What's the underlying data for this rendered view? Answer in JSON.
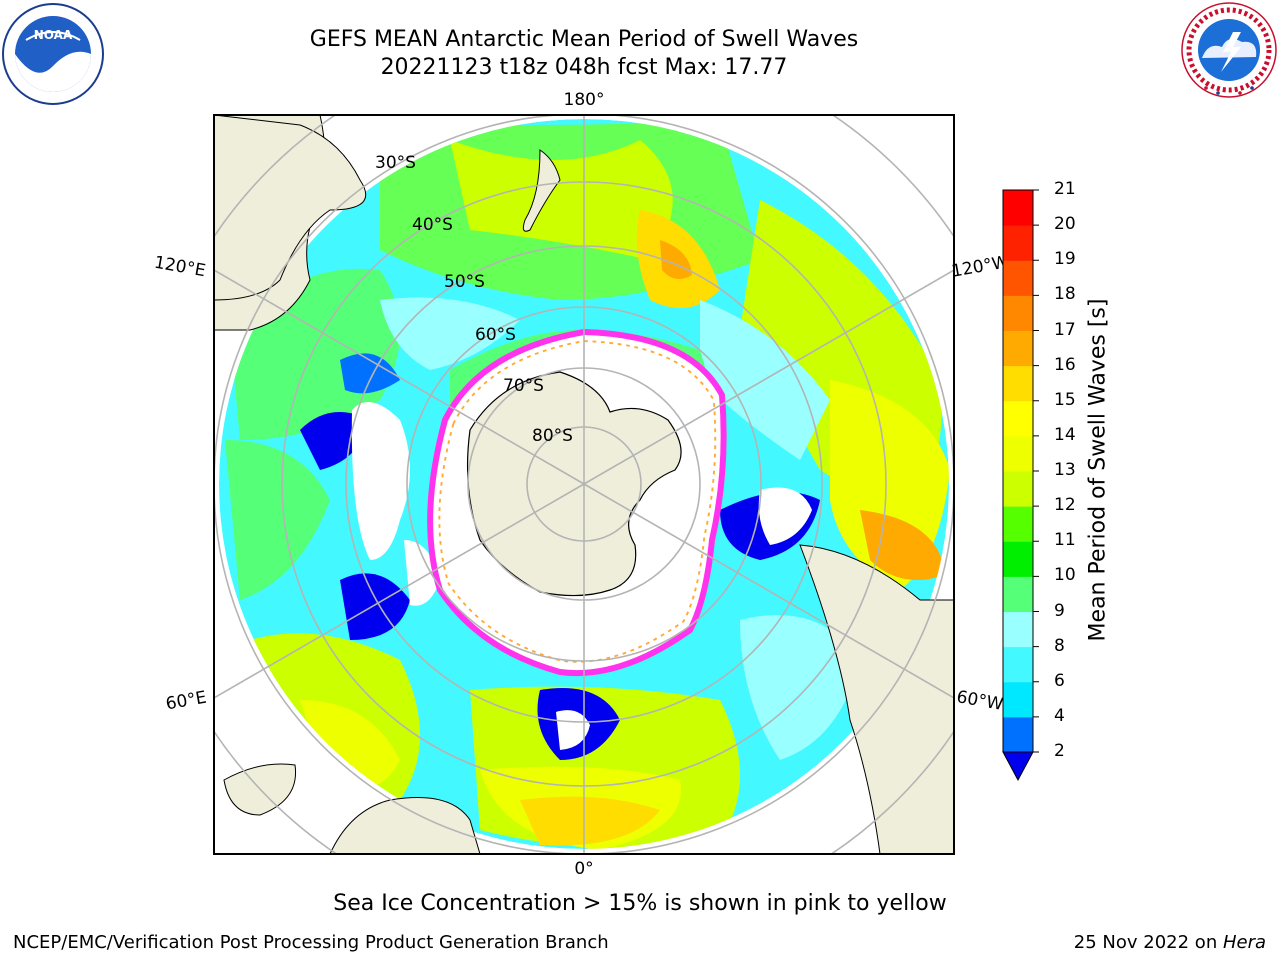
{
  "header": {
    "title_line1": "GEFS MEAN Antarctic Mean Period of Swell Waves",
    "title_line2": "20221123 t18z 048h fcst   Max: 17.77"
  },
  "logos": {
    "left": {
      "icon": "noaa-logo",
      "text": "NOAA"
    },
    "right": {
      "icon": "nws-logo",
      "text": "NATIONAL WEATHER SERVICE"
    }
  },
  "map": {
    "projection": "south-polar-stereographic",
    "lon_labels": {
      "top": "180°",
      "bottom": "0°",
      "left_upper": "120°E",
      "right_upper": "120°W",
      "left_lower": "60°E",
      "right_lower": "60°W"
    },
    "lat_labels": [
      "30°S",
      "40°S",
      "50°S",
      "60°S",
      "70°S",
      "80°S"
    ],
    "colors": {
      "land": "#efeedb",
      "ice": "#ffffff",
      "ice_edge_pink": "#ff33ee",
      "ice_edge_yellow": "#ffaa33",
      "graticule": "#b4b4b4"
    }
  },
  "colorbar": {
    "title": "Mean Period of Swell Waves [s]",
    "ticks": [
      "21",
      "20",
      "19",
      "18",
      "17",
      "16",
      "15",
      "14",
      "13",
      "12",
      "11",
      "10",
      "9",
      "8",
      "6",
      "4",
      "2"
    ],
    "colors_bottom_to_top": [
      "#0070ff",
      "#00e8ff",
      "#44f8ff",
      "#99ffff",
      "#55ff77",
      "#00ee00",
      "#55ff00",
      "#ccff00",
      "#eeff00",
      "#ffff00",
      "#ffdd00",
      "#ffaa00",
      "#ff8800",
      "#ff5500",
      "#ff2200",
      "#ff0000"
    ],
    "under_color": "#0000ee"
  },
  "note": "Sea Ice Concentration > 15% is shown in pink to yellow",
  "footer": {
    "left": "NCEP/EMC/Verification Post Processing Product Generation Branch",
    "right_date": "25 Nov 2022 on ",
    "right_host": "Hera"
  }
}
